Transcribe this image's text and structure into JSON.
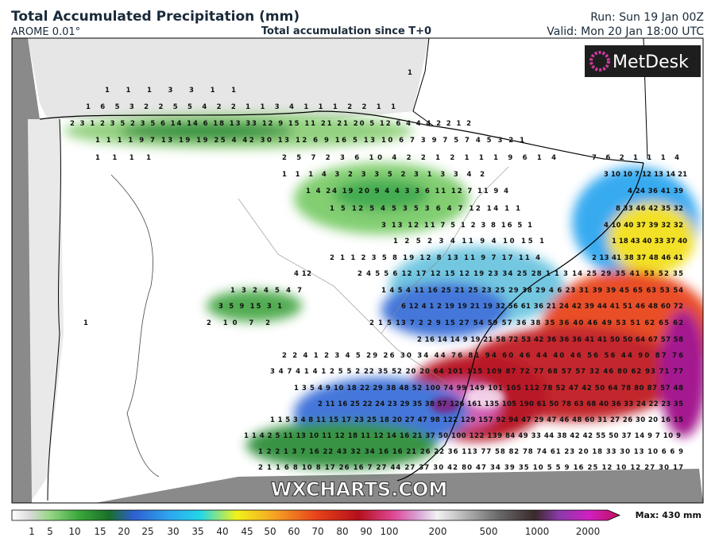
{
  "header": {
    "title": "Total Accumulated Precipitation (mm)",
    "model": "AROME 0.01°",
    "subtitle": "Total accumulation since T+0",
    "run": "Run: Sun 19 Jan 00Z",
    "valid": "Valid: Mon 20 Jan 18:00 UTC"
  },
  "logo": "MetDesk",
  "watermark": "WXCHARTS.COM",
  "map_labels": [
    "1",
    "1 1 1 3 3 1 1",
    "1 6 5 3 2 2 5 5 4 2 2 1 1 3 4 1 1 1 2 2 1 1",
    "2 3 1 2 3 5 2 3 5 6 14 14 6 18 13 33 12 9 15 11 21 21 20 5 12 6 4 4 4 2 2 1 2",
    "1 1 1 1 9 7 13 19 19 25 4 42 30 13 12 6 9 16 5 13 10 6 7 3 9 7 5 7 4 5 3 2 1",
    "1 1 1 1",
    "2 5 7 2 3 6 10 4 2 2 1 2 1 1 1 9 6 1 4",
    "7 6 2 1 1 1 4",
    "1 1 1 4 3 2 3 3 5 2 3 1 3 3 4 2",
    "3 10 10 7 12 13 14 21",
    "1 4 24 19 20 9 4 4 3 3 6 11 12 7 11 9 4",
    "4 24 36 41 39",
    "1 5 12 5 4 5 3 5 3 6 4 7 12 14 1 1",
    "8 33 46 42 35 32",
    "3 13 12 11 7 5 1 2 3 8 16 5 1",
    "4 10 40 37 39 32 32",
    "1 2 5 2 3 4 11 9 4 10 15 1",
    "1 18 43 40 33 37 40",
    "2 1 1 2 3 5 8 19 12 8 13 11 9 7 17 11 4",
    "2 13 41 38 37 48 46 41",
    "4 12",
    "2 4 5 5 6 12 17 12 15 12 19 23 34 25 28 1 1 3 14 25 29 35 41 53 52 35",
    "1 3 2 4 5 4 7",
    "1 4 5 4 11 16 25 21 25 23 25 29 38 29 4 6 23 31 39 39 45 65 63 53 54",
    "3 5 9 15 3 1",
    "6 12 4 1 2 19 19 21 19 32 56 61 36 21 24 42 39 44 41 51 46 48 60 72",
    "1",
    "2 10 7 2",
    "2 1 5 13 7 2 2 9 15 27 54 59 57 36 38 35 36 40 46 49 53 51 62 65 62",
    "2 16 14 14 9 19 21 58 72 53 42 36 36 36 41 41 50 50 64 67 57 58",
    "2 2 4 1 2 3 4 5 29 26 30 34 44 76 81 94 60 46 44 40 46 56 56 44 90 87 76",
    "3 4 7 4 1 4 1 2 5 5 2 22 35 52 20 20 64 101 115 109 87 72 77 68 57 57 32 46 80 62 93 71 77",
    "1 3 5 4 9 10 18 22 29 38 48 52 100 74 99 149 101 105 112 78 52 47 42 50 64 78 80 87 57 48",
    "2 11 16 25 22 24 23 29 35 38 57 126 161 135 105 190 61 50 78 63 68 40 36 33 24 22 23 35",
    "1 1 5 3 4 8 11 15 17 23 25 18 20 27 47 98 122 129 157 92 94 47 29 47 46 48 60 31 27 26 30 20 16 15",
    "1 1 4 2 5 11 13 10 11 12 18 11 12 14 16 21 37 50 100 122 139 84 49 33 44 38 42 42 55 50 37 14 9 7 10 9",
    "1 2 2 1 3 7 16 22 43 32 34 16 16 21 26 22 36 113 77 58 82 78 74 61 23 20 18 33 30 13 10 6 6 9",
    "2 1 1 6 8 10 8 17 26 16 7 27 44 27 37 30 42 80 47 34 39 35 10 5 5 9 16 25 12 10 12 27 30 17"
  ],
  "legend": {
    "labels": [
      "1",
      "5",
      "10",
      "15",
      "20",
      "25",
      "30",
      "35",
      "40",
      "45",
      "50",
      "60",
      "70",
      "80",
      "90",
      "100",
      "200",
      "500",
      "1000",
      "2000"
    ],
    "max": "Max: 430 mm"
  }
}
